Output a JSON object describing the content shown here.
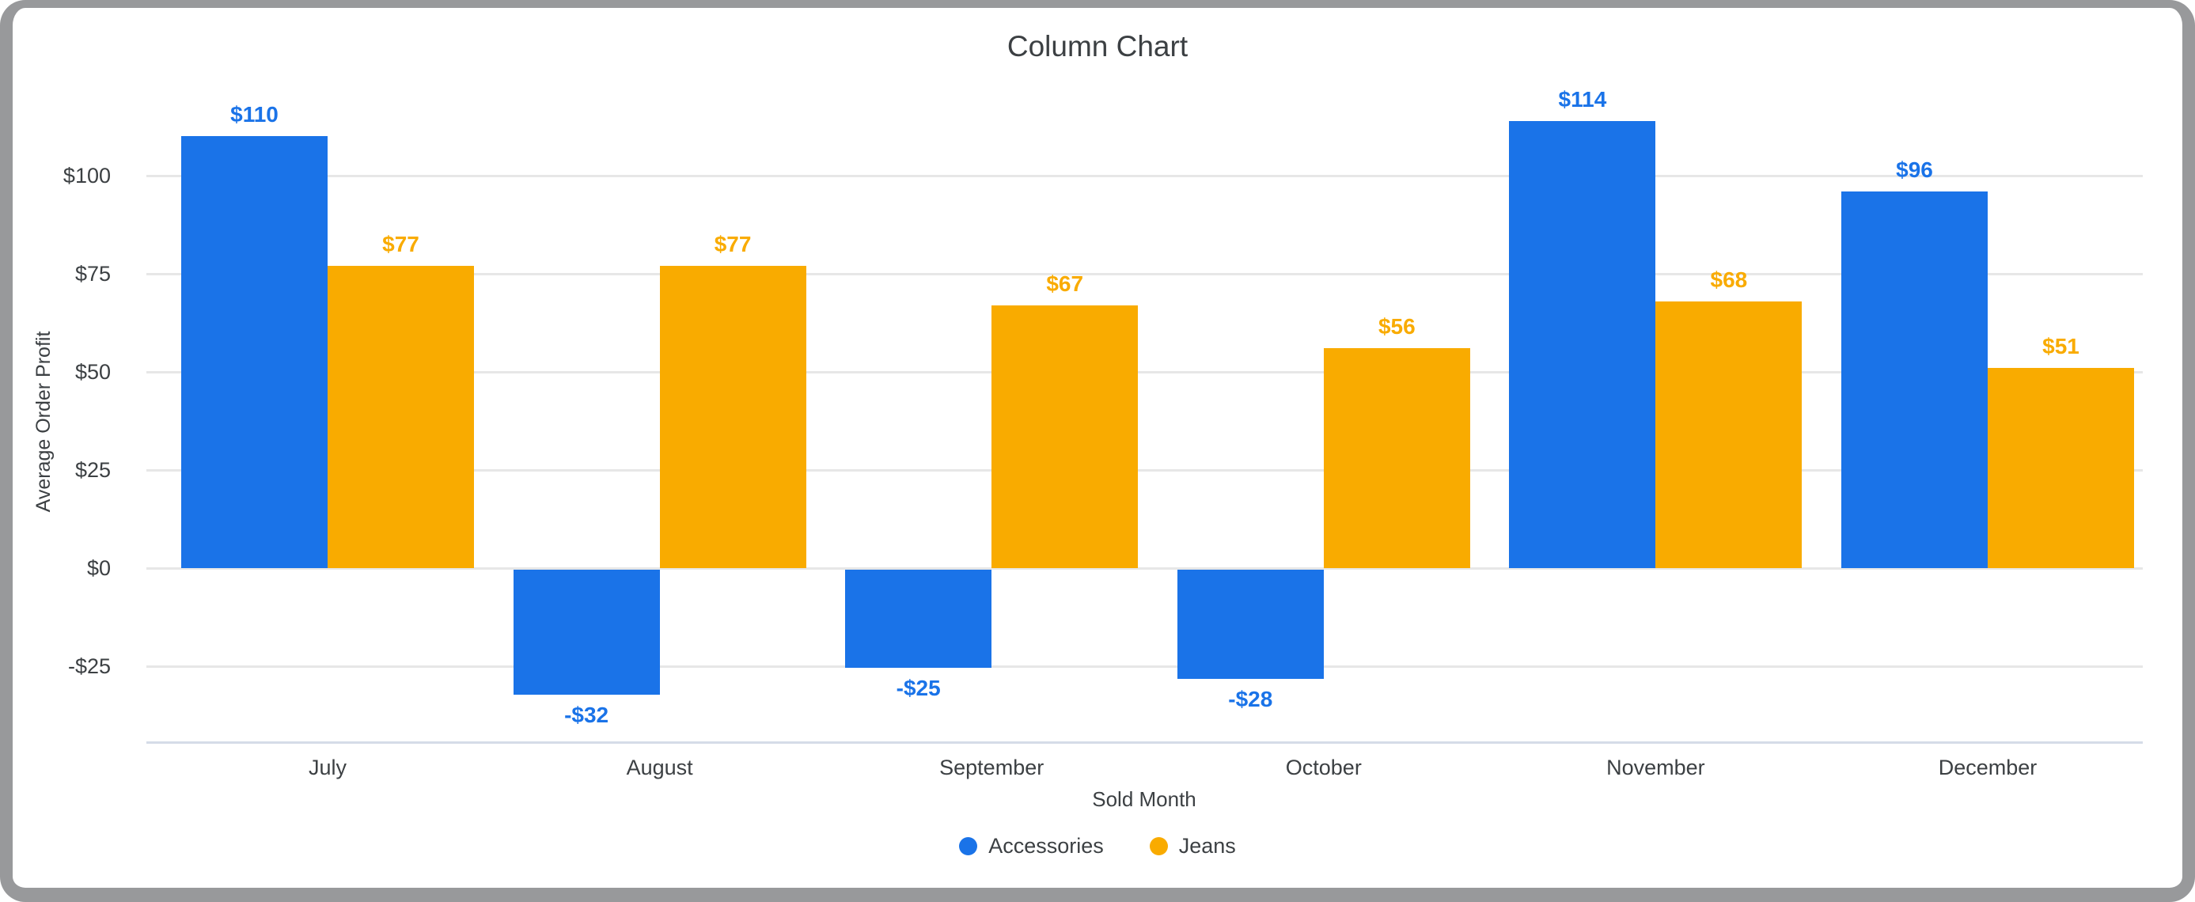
{
  "chart_data": {
    "type": "bar",
    "title": "Column Chart",
    "xlabel": "Sold Month",
    "ylabel": "Average Order Profit",
    "categories": [
      "July",
      "August",
      "September",
      "October",
      "November",
      "December"
    ],
    "series": [
      {
        "name": "Accessories",
        "color": "#1a73e8",
        "values": [
          110,
          -32,
          -25,
          -28,
          114,
          96
        ],
        "data_labels": [
          "$110",
          "-$32",
          "-$25",
          "-$28",
          "$114",
          "$96"
        ]
      },
      {
        "name": "Jeans",
        "color": "#f9ab00",
        "values": [
          77,
          77,
          67,
          56,
          68,
          51
        ],
        "data_labels": [
          "$77",
          "$77",
          "$67",
          "$56",
          "$68",
          "$51"
        ]
      }
    ],
    "y_ticks": [
      {
        "value": 100,
        "label": "$100"
      },
      {
        "value": 75,
        "label": "$75"
      },
      {
        "value": 50,
        "label": "$50"
      },
      {
        "value": 25,
        "label": "$25"
      },
      {
        "value": 0,
        "label": "$0"
      },
      {
        "value": -25,
        "label": "-$25"
      }
    ],
    "ylim": [
      -45,
      125
    ],
    "grid": true,
    "legend_position": "bottom"
  },
  "colors": {
    "gridline": "#e7e7e7",
    "baseline": "#d5dce8",
    "frame_border": "#98999b",
    "title_text": "#3c4043",
    "axis_text": "#3c4043",
    "background": "#ffffff"
  }
}
